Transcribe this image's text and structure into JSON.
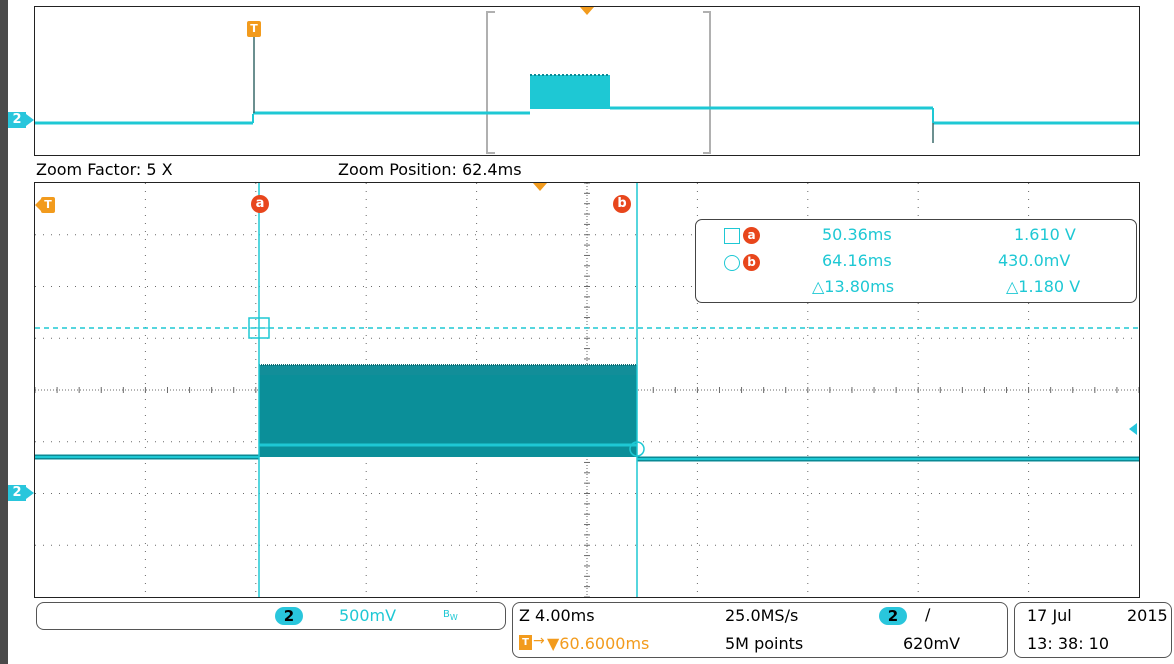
{
  "overview": {
    "trigger_marker": "T",
    "channel_marker": "2"
  },
  "zoom_bar": {
    "zoom_factor": "Zoom Factor: 5 X",
    "zoom_position": "Zoom Position: 62.4ms"
  },
  "main_display": {
    "trigger_marker": "T",
    "channel_marker": "2",
    "cursor_a_label": "a",
    "cursor_b_label": "b"
  },
  "cursor_readout": {
    "a_time": "50.36ms",
    "a_value": "1.610 V",
    "b_time": "64.16ms",
    "b_value": "430.0mV",
    "delta_time": "△13.80ms",
    "delta_value": "△1.180 V"
  },
  "channel_panel": {
    "channel": "2",
    "scale": "500mV",
    "bw_icon": "B_W"
  },
  "timebase_panel": {
    "zoom_scale": "Z 4.00ms",
    "trigger_offset": "▼60.6000ms",
    "sample_rate": "25.0MS/s",
    "record_length": "5M points",
    "trigger_channel": "2",
    "trigger_slope_icon": "rising-edge-icon",
    "trigger_level": "620mV"
  },
  "datetime_panel": {
    "date_day_month": "17 Jul",
    "year": "2015",
    "time": "13: 38: 10"
  },
  "colors": {
    "trace": "#1ec8d4",
    "trace_dark": "#0a8a95",
    "trigger": "#f29b1d",
    "cursor_badge": "#e8461c",
    "grid": "#6a6a6a"
  }
}
